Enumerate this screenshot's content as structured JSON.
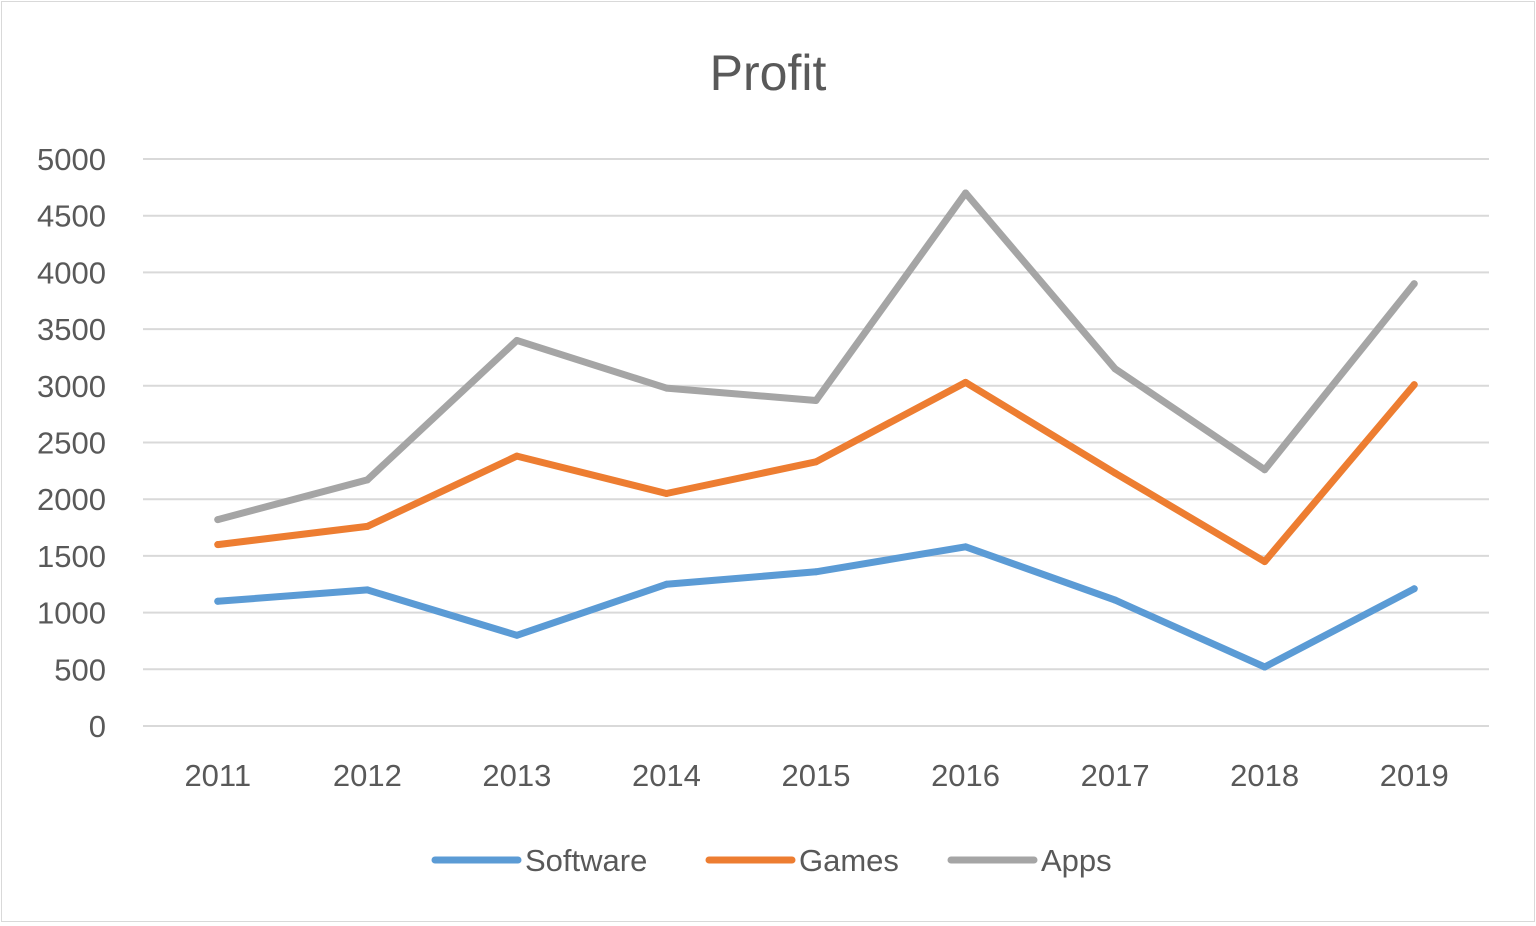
{
  "chart_data": {
    "type": "line",
    "title": "Profit",
    "xlabel": "",
    "ylabel": "",
    "categories": [
      "2011",
      "2012",
      "2013",
      "2014",
      "2015",
      "2016",
      "2017",
      "2018",
      "2019"
    ],
    "ylim": [
      0,
      5000
    ],
    "yticks": [
      "0",
      "500",
      "1000",
      "1500",
      "2000",
      "2500",
      "3000",
      "3500",
      "4000",
      "4500",
      "5000"
    ],
    "grid": true,
    "legend_position": "bottom",
    "series": [
      {
        "name": "Software",
        "color": "#5b9bd5",
        "values": [
          1100,
          1200,
          800,
          1250,
          1360,
          1580,
          1110,
          520,
          1210
        ]
      },
      {
        "name": "Games",
        "color": "#ed7d31",
        "values": [
          1600,
          1760,
          2380,
          2050,
          2330,
          3030,
          2230,
          1450,
          3010
        ]
      },
      {
        "name": "Apps",
        "color": "#a5a5a5",
        "values": [
          1820,
          2170,
          3400,
          2980,
          2870,
          4700,
          3150,
          2260,
          3900
        ]
      }
    ]
  }
}
